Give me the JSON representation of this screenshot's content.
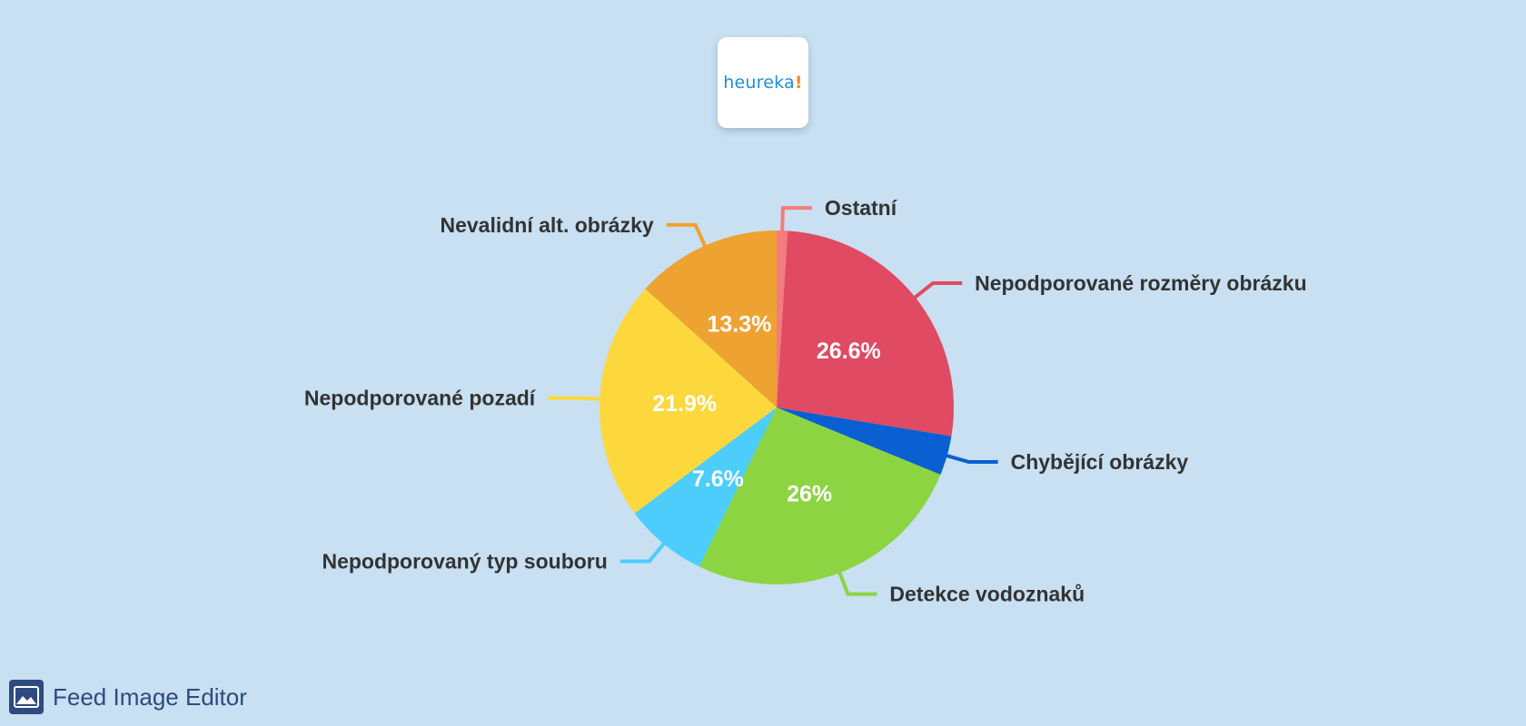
{
  "logo": {
    "text": "heureka",
    "accent": "!",
    "text_color": "#1b8fdc",
    "accent_color": "#f28c1c"
  },
  "chart_data": {
    "type": "pie",
    "title": "",
    "start_angle_deg": 0,
    "direction": "clockwise",
    "slices": [
      {
        "label": "Ostatní",
        "value": 1.0,
        "percent_label": "",
        "color": "#f47c7c"
      },
      {
        "label": "Nepodporované rozměry obrázku",
        "value": 26.6,
        "percent_label": "26.6%",
        "color": "#e04a62"
      },
      {
        "label": "Chybějící obrázky",
        "value": 3.6,
        "percent_label": "",
        "color": "#0a5fd3"
      },
      {
        "label": "Detekce vodoznaků",
        "value": 26.0,
        "percent_label": "26%",
        "color": "#8cd442"
      },
      {
        "label": "Nepodporovaný typ souboru",
        "value": 7.6,
        "percent_label": "7.6%",
        "color": "#4ccdfb"
      },
      {
        "label": "Nepodporované pozadí",
        "value": 21.9,
        "percent_label": "21.9%",
        "color": "#fdd83d"
      },
      {
        "label": "Nevalidní alt. obrázky",
        "value": 13.3,
        "percent_label": "13.3%",
        "color": "#eea232"
      }
    ]
  },
  "footer": {
    "title": "Feed Image Editor",
    "icon": "image-icon",
    "color": "#2e4a7f"
  }
}
